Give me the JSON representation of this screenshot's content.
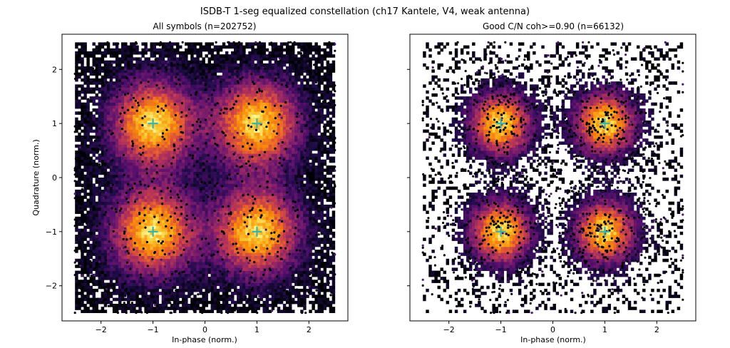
{
  "figure": {
    "title": "ISDB-T 1-seg equalized constellation (ch17 Kantele, V4, weak antenna)"
  },
  "chart_data": [
    {
      "type": "scatter",
      "title": "All symbols  (n=202752)",
      "xlabel": "In-phase (norm.)",
      "ylabel": "Quadrature (norm.)",
      "xlim": [
        -2.75,
        2.75
      ],
      "ylim": [
        -2.65,
        2.65
      ],
      "xticks": [
        -2,
        -1,
        0,
        1,
        2
      ],
      "yticks": [
        -2,
        -1,
        0,
        1,
        2
      ],
      "xtick_labels": [
        "−2",
        "−1",
        "0",
        "1",
        "2"
      ],
      "ytick_labels": [
        "−2",
        "−1",
        "0",
        "1",
        "2"
      ],
      "show_ytick_labels": true,
      "clip_range": [
        -2.5,
        2.5
      ],
      "cluster_spread": 0.55,
      "colormap": "inferno",
      "ideal_points": [
        [
          -1,
          1
        ],
        [
          1,
          1
        ],
        [
          -1,
          -1
        ],
        [
          1,
          -1
        ]
      ],
      "ideal_marker_color": "#3fb2a6"
    },
    {
      "type": "scatter",
      "title": "Good C/N  coh>=0.90  (n=66132)",
      "xlabel": "In-phase (norm.)",
      "ylabel": "",
      "xlim": [
        -2.75,
        2.75
      ],
      "ylim": [
        -2.65,
        2.65
      ],
      "xticks": [
        -2,
        -1,
        0,
        1,
        2
      ],
      "yticks": [
        -2,
        -1,
        0,
        1,
        2
      ],
      "xtick_labels": [
        "−2",
        "−1",
        "0",
        "1",
        "2"
      ],
      "ytick_labels": [],
      "show_ytick_labels": false,
      "clip_range": [
        -2.5,
        2.5
      ],
      "cluster_spread": 0.4,
      "colormap": "inferno",
      "ideal_points": [
        [
          -1,
          1
        ],
        [
          1,
          1
        ],
        [
          -1,
          -1
        ],
        [
          1,
          -1
        ]
      ],
      "ideal_marker_color": "#3fb2a6"
    }
  ]
}
